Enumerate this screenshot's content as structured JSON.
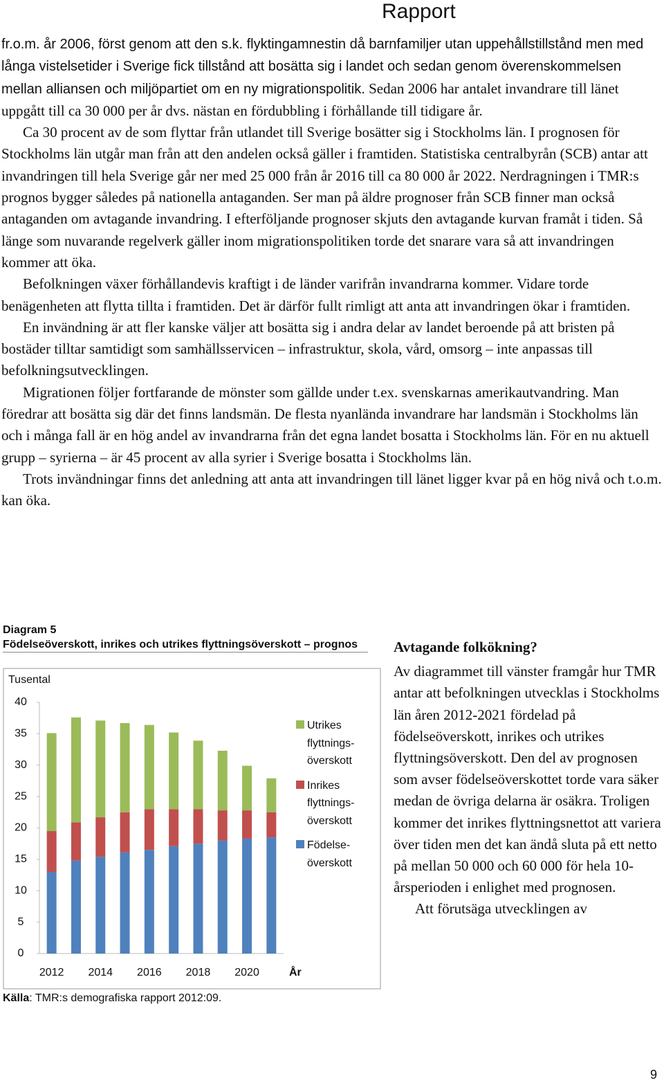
{
  "header": {
    "title": "Rapport"
  },
  "body": {
    "lead": "fr.o.m. år 2006, först genom att den s.k. flyktingamnestin då barnfamiljer utan uppehållstillstånd men med långa vistelsetider i Sverige fick tillstånd att bosätta sig i landet och sedan genom överenskommelsen mellan alliansen och miljöpartiet om en ny migrationspolitik.",
    "paragraphs": [
      "Sedan 2006 har antalet invandrare till länet uppgått till ca 30 000 per år dvs. nästan en fördubbling i förhållande till tidigare år.",
      "Ca 30 procent av de som flyttar från utlandet till Sverige bosätter sig i Stockholms län. I prognosen för Stockholms län utgår man från att den andelen också gäller i framtiden. Statistiska centralbyrån (SCB) antar att invandringen till hela Sverige går ner med 25 000 från år 2016 till ca 80 000 år 2022. Nerdragningen i TMR:s prognos bygger således på nationella antaganden. Ser man på äldre prognoser från SCB finner man också antaganden om avtagande invandring. I efterföljande prognoser skjuts den avtagande kurvan framåt i tiden. Så länge som nuvarande regelverk gäller inom migrationspolitiken torde det snarare vara så att invandringen kommer att öka.",
      "Befolkningen växer förhållandevis kraftigt i de länder varifrån invandrarna kommer. Vidare torde benägenheten att flytta tillta i framtiden. Det är därför fullt rimligt att anta att invandringen ökar i framtiden.",
      "En invändning är att fler kanske väljer att bosätta sig i andra delar av landet beroende på att bristen på bostäder tilltar samtidigt som samhällsservicen – infrastruktur, skola, vård, omsorg – inte anpassas till befolkningsutvecklingen.",
      "Migrationen följer fortfarande de mönster som gällde under t.ex. svenskarnas amerikautvandring. Man föredrar att bosätta sig där det finns landsmän. De flesta nyanlända invandrare har landsmän i Stockholms län och i många fall är en hög andel av invandrarna från det egna landet bosatta i Stockholms län. För en nu aktuell grupp – syrierna – är 45 procent av alla syrier i Sverige bosatta i Stockholms län.",
      "Trots invändningar finns det anledning att anta att invandringen till länet ligger kvar på en hög nivå och t.o.m. kan öka."
    ]
  },
  "sidebar": {
    "heading": "Avtagande folkökning?",
    "paragraphs": [
      "Av diagrammet till vänster framgår hur TMR antar att befolkningen utvecklas i Stockholms län åren 2012-2021 fördelad på födelseöverskott, inrikes och utrikes flyttningsöverskott. Den del av prognosen som avser födelseöverskottet torde vara säker medan de övriga delarna är osäkra. Troligen kommer det inrikes flyttningsnettot att variera över tiden men det kan ändå sluta på ett netto på mellan 50 000 och 60 000 för hela 10-årsperioden i enlighet med prognosen.",
      "Att förutsäga utvecklingen av"
    ]
  },
  "page_number": "9",
  "chart_data": {
    "type": "stacked-bar",
    "label": "Diagram 5",
    "title": "Födelseöverskott, inrikes och utrikes flyttningsöverskott – prognos",
    "y_label": "Tusental",
    "x_label": "År",
    "source_label": "Källa",
    "source": ": TMR:s demografiska rapport 2012:09.",
    "categories": [
      "2012",
      null,
      "2014",
      null,
      "2016",
      null,
      "2018",
      null,
      "2020",
      null
    ],
    "series": [
      {
        "name": "Födelse-överskott",
        "color": "#4f81bd",
        "values": [
          13.0,
          14.8,
          15.4,
          16.1,
          16.5,
          17.1,
          17.5,
          18.0,
          18.3,
          18.5
        ]
      },
      {
        "name": "Inrikes flyttnings-överskott",
        "color": "#c0504d",
        "values": [
          6.5,
          6.1,
          6.3,
          6.4,
          6.5,
          5.9,
          5.5,
          4.8,
          4.5,
          4.0
        ]
      },
      {
        "name": "Utrikes flyttnings-överskott",
        "color": "#9bbb59",
        "values": [
          15.6,
          16.7,
          15.4,
          14.2,
          13.4,
          12.2,
          10.9,
          9.5,
          7.1,
          5.4
        ]
      }
    ],
    "ylim": [
      0,
      40
    ],
    "yticks": [
      0,
      5,
      10,
      15,
      20,
      25,
      30,
      35,
      40
    ],
    "grid": false
  }
}
